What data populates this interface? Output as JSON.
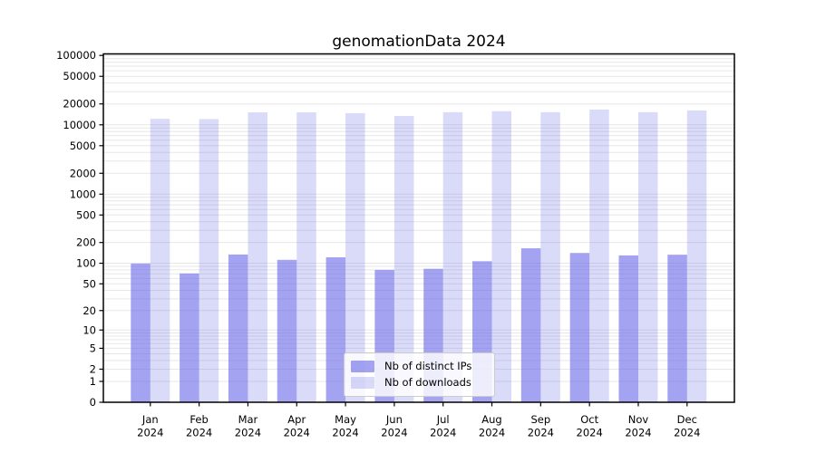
{
  "title": "genomationData 2024",
  "chart_data": {
    "type": "bar",
    "title": "genomationData 2024",
    "categories": [
      "Jan",
      "Feb",
      "Mar",
      "Apr",
      "May",
      "Jun",
      "Jul",
      "Aug",
      "Sep",
      "Oct",
      "Nov",
      "Dec"
    ],
    "year": "2024",
    "series": [
      {
        "name": "Nb of distinct IPs",
        "color": "rgba(102,102,232,0.60)",
        "values": [
          99,
          71,
          134,
          112,
          122,
          80,
          83,
          107,
          165,
          141,
          130,
          133
        ]
      },
      {
        "name": "Nb of downloads",
        "color": "rgba(102,102,232,0.24)",
        "values": [
          12200,
          12100,
          15100,
          15100,
          14700,
          13400,
          15200,
          15700,
          15200,
          16600,
          15200,
          16100
        ]
      }
    ],
    "xlabel": "",
    "ylabel": "",
    "y_scale": "log10(value+1)",
    "y_ticks": [
      0,
      1,
      2,
      5,
      10,
      20,
      50,
      100,
      200,
      500,
      1000,
      2000,
      5000,
      10000,
      20000,
      50000,
      100000
    ],
    "ylim": [
      0,
      100000
    ],
    "grid": "horizontal log minor gridlines, light gray",
    "legend_position": "inside lower-center",
    "colors": {
      "axis": "#000000",
      "gridline": "#e7e7e7",
      "tick_text": "#000000"
    }
  }
}
